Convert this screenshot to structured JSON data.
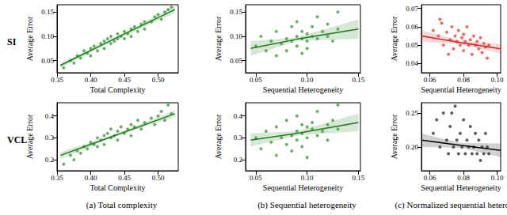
{
  "chart_data": [
    {
      "type": "scatter",
      "row_label": "SI",
      "xlabel": "Total Complexity",
      "ylabel": "Average Error",
      "xlim": [
        0.35,
        0.53
      ],
      "ylim": [
        0.025,
        0.165
      ],
      "xticks": [
        0.35,
        {
          "value": 0.4,
          "label": "0.40"
        },
        0.45,
        {
          "value": 0.5,
          "label": "0.50"
        }
      ],
      "yticks": [
        0.05,
        {
          "value": 0.1,
          "label": "0.10"
        },
        0.15
      ],
      "grid": false,
      "series": [
        {
          "type": "scatter",
          "color": "#3f9f3f",
          "x": [
            0.36,
            0.37,
            0.375,
            0.38,
            0.385,
            0.39,
            0.395,
            0.4,
            0.4,
            0.405,
            0.41,
            0.415,
            0.42,
            0.42,
            0.425,
            0.43,
            0.43,
            0.435,
            0.44,
            0.44,
            0.445,
            0.45,
            0.45,
            0.455,
            0.46,
            0.46,
            0.465,
            0.47,
            0.475,
            0.48,
            0.48,
            0.49,
            0.495,
            0.5,
            0.505,
            0.51,
            0.52,
            0.515
          ],
          "values": [
            0.035,
            0.05,
            0.045,
            0.06,
            0.055,
            0.07,
            0.065,
            0.075,
            0.06,
            0.08,
            0.07,
            0.085,
            0.09,
            0.075,
            0.095,
            0.085,
            0.1,
            0.09,
            0.095,
            0.105,
            0.1,
            0.11,
            0.095,
            0.105,
            0.115,
            0.1,
            0.12,
            0.11,
            0.125,
            0.13,
            0.115,
            0.13,
            0.14,
            0.145,
            0.135,
            0.15,
            0.16,
            0.155
          ]
        },
        {
          "type": "line",
          "color": "#1b7a1b",
          "x": [
            0.355,
            0.44,
            0.525
          ],
          "values": [
            0.04,
            0.098,
            0.155
          ],
          "lower": [
            0.035,
            0.095,
            0.148
          ],
          "upper": [
            0.045,
            0.101,
            0.162
          ]
        }
      ]
    },
    {
      "type": "scatter",
      "xlabel": "Sequential Heterogeneity",
      "ylabel": "Average Error",
      "xlim": [
        0.04,
        0.152
      ],
      "ylim": [
        0.025,
        0.165
      ],
      "xticks": [
        0.05,
        {
          "value": 0.1,
          "label": "0.10"
        },
        0.15
      ],
      "yticks": [
        0.05,
        {
          "value": 0.1,
          "label": "0.10"
        },
        0.15
      ],
      "grid": false,
      "series": [
        {
          "type": "scatter",
          "color": "#3f9f3f",
          "x": [
            0.05,
            0.055,
            0.06,
            0.065,
            0.07,
            0.07,
            0.075,
            0.08,
            0.08,
            0.085,
            0.085,
            0.09,
            0.09,
            0.09,
            0.095,
            0.095,
            0.1,
            0.1,
            0.1,
            0.105,
            0.105,
            0.11,
            0.11,
            0.115,
            0.12,
            0.12,
            0.125,
            0.13,
            0.13,
            0.095
          ],
          "values": [
            0.08,
            0.1,
            0.07,
            0.09,
            0.06,
            0.11,
            0.085,
            0.095,
            0.07,
            0.12,
            0.09,
            0.1,
            0.08,
            0.13,
            0.095,
            0.11,
            0.09,
            0.105,
            0.075,
            0.12,
            0.1,
            0.095,
            0.14,
            0.11,
            0.1,
            0.125,
            0.09,
            0.115,
            0.15,
            0.065
          ]
        },
        {
          "type": "line",
          "color": "#1b7a1b",
          "x": [
            0.045,
            0.09,
            0.15
          ],
          "values": [
            0.075,
            0.094,
            0.115
          ],
          "lower": [
            0.06,
            0.09,
            0.095
          ],
          "upper": [
            0.09,
            0.098,
            0.135
          ]
        }
      ]
    },
    {
      "type": "scatter",
      "xlabel": "Sequential Heterogeneity",
      "ylabel": "Average Error",
      "xlim": [
        0.055,
        0.102
      ],
      "ylim": [
        0.035,
        0.072
      ],
      "xticks": [
        0.06,
        0.08,
        {
          "value": 0.1,
          "label": "0.10"
        }
      ],
      "yticks": [
        0.04,
        0.05,
        0.06,
        0.07
      ],
      "grid": false,
      "series": [
        {
          "type": "scatter",
          "color": "#e8453c",
          "x": [
            0.062,
            0.065,
            0.067,
            0.068,
            0.07,
            0.072,
            0.073,
            0.074,
            0.075,
            0.076,
            0.077,
            0.078,
            0.079,
            0.08,
            0.08,
            0.081,
            0.082,
            0.083,
            0.084,
            0.085,
            0.086,
            0.087,
            0.088,
            0.089,
            0.09,
            0.091,
            0.092,
            0.093,
            0.094,
            0.095,
            0.071,
            0.066
          ],
          "values": [
            0.058,
            0.055,
            0.062,
            0.05,
            0.057,
            0.053,
            0.06,
            0.048,
            0.055,
            0.052,
            0.058,
            0.05,
            0.054,
            0.047,
            0.056,
            0.052,
            0.06,
            0.05,
            0.053,
            0.045,
            0.055,
            0.05,
            0.052,
            0.048,
            0.054,
            0.046,
            0.051,
            0.049,
            0.043,
            0.05,
            0.045,
            0.064
          ]
        },
        {
          "type": "line",
          "color": "#d62020",
          "x": [
            0.055,
            0.078,
            0.102
          ],
          "values": [
            0.055,
            0.0515,
            0.048
          ],
          "lower": [
            0.052,
            0.0505,
            0.0455
          ],
          "upper": [
            0.058,
            0.0525,
            0.0505
          ]
        }
      ]
    },
    {
      "type": "scatter",
      "row_label": "VCL",
      "xlabel": "Total Complexity",
      "ylabel": "Average Error",
      "caption": "(a) Total complexity",
      "xlim": [
        0.35,
        0.53
      ],
      "ylim": [
        0.15,
        0.46
      ],
      "xticks": [
        0.35,
        {
          "value": 0.4,
          "label": "0.40"
        },
        0.45,
        {
          "value": 0.5,
          "label": "0.50"
        }
      ],
      "yticks": [
        0.2,
        0.3,
        0.4
      ],
      "grid": false,
      "series": [
        {
          "type": "scatter",
          "color": "#3f9f3f",
          "x": [
            0.36,
            0.37,
            0.375,
            0.38,
            0.385,
            0.39,
            0.395,
            0.4,
            0.405,
            0.41,
            0.41,
            0.415,
            0.42,
            0.42,
            0.425,
            0.43,
            0.43,
            0.435,
            0.44,
            0.44,
            0.445,
            0.45,
            0.455,
            0.46,
            0.46,
            0.465,
            0.47,
            0.475,
            0.48,
            0.49,
            0.495,
            0.5,
            0.51,
            0.52,
            0.505,
            0.515
          ],
          "values": [
            0.18,
            0.22,
            0.2,
            0.24,
            0.23,
            0.26,
            0.25,
            0.28,
            0.27,
            0.3,
            0.26,
            0.29,
            0.31,
            0.27,
            0.32,
            0.3,
            0.34,
            0.31,
            0.33,
            0.29,
            0.35,
            0.32,
            0.34,
            0.36,
            0.31,
            0.35,
            0.38,
            0.34,
            0.37,
            0.39,
            0.36,
            0.4,
            0.38,
            0.41,
            0.42,
            0.45
          ]
        },
        {
          "type": "line",
          "color": "#1b7a1b",
          "x": [
            0.355,
            0.44,
            0.525
          ],
          "values": [
            0.22,
            0.315,
            0.41
          ],
          "lower": [
            0.205,
            0.31,
            0.395
          ],
          "upper": [
            0.235,
            0.32,
            0.425
          ]
        }
      ]
    },
    {
      "type": "scatter",
      "xlabel": "Sequential Heterogeneity",
      "ylabel": "Average Error",
      "caption": "(b) Sequential heterogeneity",
      "xlim": [
        0.04,
        0.152
      ],
      "ylim": [
        0.15,
        0.46
      ],
      "xticks": [
        0.05,
        {
          "value": 0.1,
          "label": "0.10"
        },
        0.15
      ],
      "yticks": [
        0.2,
        0.3,
        0.4
      ],
      "grid": false,
      "series": [
        {
          "type": "scatter",
          "color": "#3f9f3f",
          "x": [
            0.05,
            0.055,
            0.06,
            0.065,
            0.07,
            0.07,
            0.075,
            0.08,
            0.08,
            0.085,
            0.085,
            0.09,
            0.09,
            0.09,
            0.095,
            0.095,
            0.1,
            0.1,
            0.1,
            0.105,
            0.105,
            0.11,
            0.11,
            0.115,
            0.12,
            0.12,
            0.125,
            0.13,
            0.13,
            0.095
          ],
          "values": [
            0.3,
            0.25,
            0.33,
            0.28,
            0.22,
            0.35,
            0.3,
            0.27,
            0.38,
            0.31,
            0.24,
            0.33,
            0.29,
            0.4,
            0.32,
            0.26,
            0.35,
            0.3,
            0.21,
            0.34,
            0.37,
            0.31,
            0.42,
            0.33,
            0.36,
            0.29,
            0.38,
            0.34,
            0.45,
            0.36
          ]
        },
        {
          "type": "line",
          "color": "#1b7a1b",
          "x": [
            0.045,
            0.09,
            0.15
          ],
          "values": [
            0.29,
            0.32,
            0.37
          ],
          "lower": [
            0.26,
            0.31,
            0.33
          ],
          "upper": [
            0.32,
            0.33,
            0.41
          ]
        }
      ]
    },
    {
      "type": "scatter",
      "xlabel": "Sequential Heterogeneity",
      "ylabel": "Average Error",
      "caption": "(c) Normalized sequential heterogeneity",
      "xlim": [
        0.055,
        0.102
      ],
      "ylim": [
        0.165,
        0.265
      ],
      "xticks": [
        0.06,
        0.08,
        {
          "value": 0.1,
          "label": "0.10"
        }
      ],
      "yticks": [
        {
          "value": 0.2,
          "label": "0.20"
        },
        0.25
      ],
      "grid": false,
      "series": [
        {
          "type": "scatter",
          "color": "#333333",
          "x": [
            0.062,
            0.064,
            0.066,
            0.068,
            0.07,
            0.071,
            0.072,
            0.074,
            0.075,
            0.076,
            0.077,
            0.078,
            0.079,
            0.08,
            0.081,
            0.082,
            0.083,
            0.084,
            0.085,
            0.086,
            0.087,
            0.088,
            0.089,
            0.09,
            0.091,
            0.092,
            0.093,
            0.094,
            0.095,
            0.073
          ],
          "values": [
            0.22,
            0.24,
            0.2,
            0.25,
            0.21,
            0.19,
            0.23,
            0.2,
            0.26,
            0.21,
            0.19,
            0.22,
            0.2,
            0.24,
            0.19,
            0.21,
            0.2,
            0.23,
            0.19,
            0.2,
            0.22,
            0.19,
            0.21,
            0.18,
            0.2,
            0.19,
            0.22,
            0.2,
            0.19,
            0.25
          ]
        },
        {
          "type": "line",
          "color": "#000000",
          "x": [
            0.055,
            0.078,
            0.102
          ],
          "values": [
            0.21,
            0.2025,
            0.195
          ],
          "lower": [
            0.2,
            0.199,
            0.185
          ],
          "upper": [
            0.22,
            0.206,
            0.205
          ]
        }
      ]
    }
  ]
}
